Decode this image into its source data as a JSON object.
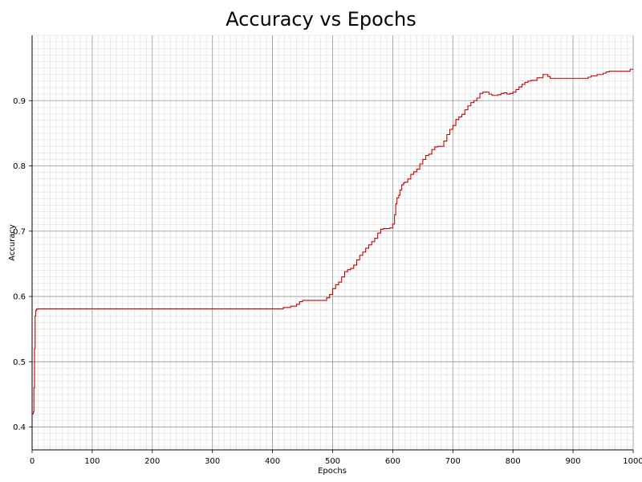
{
  "chart_data": {
    "type": "line",
    "title": "Accuracy vs Epochs",
    "xlabel": "Epochs",
    "ylabel": "Accuracy",
    "xlim": [
      0,
      1000
    ],
    "ylim": [
      0.365,
      1.0
    ],
    "xticks": [
      0,
      100,
      200,
      300,
      400,
      500,
      600,
      700,
      800,
      900,
      1000
    ],
    "yticks": [
      0.4,
      0.5,
      0.6,
      0.7,
      0.8,
      0.9
    ],
    "grid": true,
    "minor_grid": true,
    "colors": {
      "line": "#cc0000",
      "major_grid": "#999999",
      "minor_grid": "#dddddd"
    },
    "series": [
      {
        "x": [
          0,
          2,
          3,
          4,
          5,
          6,
          7,
          8,
          10,
          50,
          100,
          200,
          300,
          400,
          415,
          418,
          430,
          440,
          445,
          450,
          470,
          485,
          490,
          495,
          500,
          505,
          510,
          515,
          520,
          525,
          530,
          535,
          540,
          545,
          550,
          555,
          560,
          565,
          570,
          575,
          580,
          585,
          590,
          595,
          600,
          603,
          605,
          607,
          610,
          612,
          615,
          618,
          620,
          625,
          630,
          635,
          640,
          645,
          650,
          655,
          660,
          665,
          670,
          675,
          680,
          685,
          690,
          695,
          700,
          705,
          710,
          715,
          720,
          725,
          730,
          735,
          740,
          745,
          750,
          755,
          760,
          765,
          770,
          775,
          780,
          785,
          790,
          795,
          800,
          805,
          810,
          815,
          820,
          825,
          830,
          835,
          840,
          850,
          858,
          862,
          865,
          870,
          880,
          890,
          900,
          910,
          920,
          925,
          930,
          940,
          950,
          955,
          960,
          970,
          980,
          990,
          995,
          1000
        ],
        "y": [
          0.42,
          0.423,
          0.46,
          0.52,
          0.57,
          0.578,
          0.58,
          0.581,
          0.581,
          0.581,
          0.581,
          0.581,
          0.581,
          0.581,
          0.581,
          0.583,
          0.585,
          0.588,
          0.592,
          0.594,
          0.594,
          0.594,
          0.598,
          0.603,
          0.612,
          0.618,
          0.622,
          0.63,
          0.638,
          0.641,
          0.643,
          0.648,
          0.656,
          0.663,
          0.668,
          0.674,
          0.679,
          0.684,
          0.689,
          0.697,
          0.703,
          0.704,
          0.704,
          0.705,
          0.711,
          0.725,
          0.742,
          0.751,
          0.755,
          0.763,
          0.771,
          0.774,
          0.775,
          0.78,
          0.787,
          0.791,
          0.795,
          0.803,
          0.81,
          0.816,
          0.818,
          0.825,
          0.829,
          0.83,
          0.83,
          0.838,
          0.848,
          0.856,
          0.862,
          0.871,
          0.875,
          0.879,
          0.886,
          0.892,
          0.897,
          0.9,
          0.904,
          0.911,
          0.913,
          0.913,
          0.91,
          0.908,
          0.908,
          0.909,
          0.911,
          0.912,
          0.91,
          0.911,
          0.913,
          0.917,
          0.921,
          0.925,
          0.928,
          0.93,
          0.931,
          0.931,
          0.935,
          0.94,
          0.937,
          0.934,
          0.934,
          0.934,
          0.934,
          0.934,
          0.934,
          0.934,
          0.934,
          0.936,
          0.938,
          0.94,
          0.942,
          0.944,
          0.945,
          0.945,
          0.945,
          0.945,
          0.948,
          0.948
        ]
      }
    ]
  }
}
